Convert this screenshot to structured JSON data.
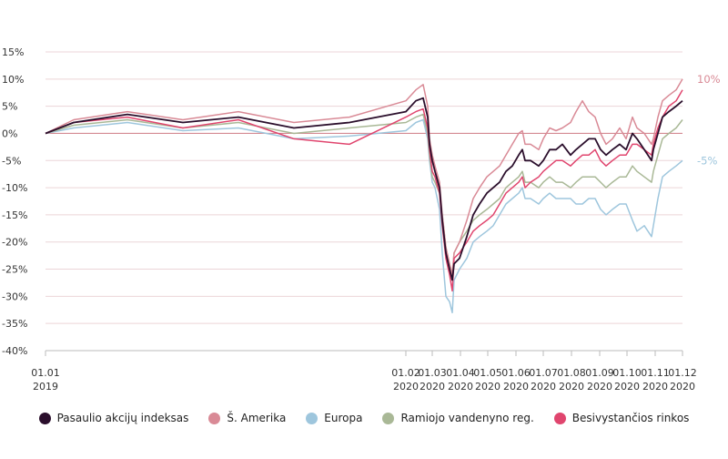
{
  "chart_data": {
    "type": "line",
    "ylim": [
      -40,
      15
    ],
    "y_ticks": [
      {
        "value": 15,
        "label": "15%"
      },
      {
        "value": 10,
        "label": "10%"
      },
      {
        "value": 5,
        "label": "5%"
      },
      {
        "value": 0,
        "label": "0%"
      },
      {
        "value": -5,
        "label": "-5%"
      },
      {
        "value": -10,
        "label": "-10%"
      },
      {
        "value": -15,
        "label": "-15%"
      },
      {
        "value": -20,
        "label": "-20%"
      },
      {
        "value": -25,
        "label": "-25%"
      },
      {
        "value": -30,
        "label": "-30%"
      },
      {
        "value": -35,
        "label": "-35%"
      },
      {
        "value": -40,
        "label": "-40%"
      }
    ],
    "x_ticks": [
      {
        "value": "2019-01-01",
        "line1": "01.01",
        "line2": "2019"
      },
      {
        "value": "2020-02-01",
        "line1": "01.02",
        "line2": "2020"
      },
      {
        "value": "2020-03-01",
        "line1": "01.03",
        "line2": "2020"
      },
      {
        "value": "2020-04-01",
        "line1": "01.04",
        "line2": "2020"
      },
      {
        "value": "2020-05-01",
        "line1": "01.05",
        "line2": "2020"
      },
      {
        "value": "2020-06-01",
        "line1": "01.06",
        "line2": "2020"
      },
      {
        "value": "2020-07-01",
        "line1": "01.07",
        "line2": "2020"
      },
      {
        "value": "2020-08-01",
        "line1": "01.08",
        "line2": "2020"
      },
      {
        "value": "2020-09-01",
        "line1": "01.09",
        "line2": "2020"
      },
      {
        "value": "2020-10-01",
        "line1": "01.10",
        "line2": "2020"
      },
      {
        "value": "2020-11-01",
        "line1": "01.11",
        "line2": "2020"
      },
      {
        "value": "2020-12-01",
        "line1": "01.12",
        "line2": "2020"
      }
    ],
    "grid": true,
    "legend_position": "bottom",
    "end_labels": [
      {
        "series": "Š. Amerika",
        "text": "10%",
        "value": 10
      },
      {
        "series": "Europa",
        "text": "-5%",
        "value": -5
      }
    ],
    "series": [
      {
        "name": "Pasaulio akcijų indeksas",
        "color": "#2b0f2c",
        "x": [
          "2019-01-01",
          "2019-02-01",
          "2019-04-01",
          "2019-06-01",
          "2019-08-01",
          "2019-10-01",
          "2019-12-01",
          "2020-02-01",
          "2020-02-12",
          "2020-02-20",
          "2020-02-25",
          "2020-02-27",
          "2020-03-01",
          "2020-03-04",
          "2020-03-09",
          "2020-03-12",
          "2020-03-16",
          "2020-03-20",
          "2020-03-23",
          "2020-03-25",
          "2020-03-31",
          "2020-04-08",
          "2020-04-15",
          "2020-04-22",
          "2020-04-30",
          "2020-05-07",
          "2020-05-14",
          "2020-05-21",
          "2020-05-28",
          "2020-06-04",
          "2020-06-08",
          "2020-06-11",
          "2020-06-17",
          "2020-06-26",
          "2020-07-01",
          "2020-07-08",
          "2020-07-15",
          "2020-07-22",
          "2020-07-31",
          "2020-08-06",
          "2020-08-13",
          "2020-08-20",
          "2020-08-27",
          "2020-09-02",
          "2020-09-08",
          "2020-09-15",
          "2020-09-23",
          "2020-09-30",
          "2020-10-07",
          "2020-10-12",
          "2020-10-20",
          "2020-10-28",
          "2020-10-30",
          "2020-11-04",
          "2020-11-09",
          "2020-11-16",
          "2020-11-24",
          "2020-12-01"
        ],
        "values": [
          0,
          2,
          3.5,
          2,
          3,
          1,
          2,
          4,
          6,
          6.5,
          3,
          -2,
          -5,
          -7,
          -10,
          -16,
          -22,
          -25,
          -27,
          -24,
          -23,
          -19,
          -15,
          -13,
          -11,
          -10,
          -9,
          -7,
          -6,
          -4,
          -3,
          -5,
          -5,
          -6,
          -5,
          -3,
          -3,
          -2,
          -4,
          -3,
          -2,
          -1,
          -1,
          -3,
          -4,
          -3,
          -2,
          -3,
          0,
          -1,
          -3,
          -5,
          -3,
          0,
          3,
          4,
          5,
          6
        ]
      },
      {
        "name": "Š. Amerika",
        "color": "#d98a96",
        "x": [
          "2019-01-01",
          "2019-02-01",
          "2019-04-01",
          "2019-06-01",
          "2019-08-01",
          "2019-10-01",
          "2019-12-01",
          "2020-02-01",
          "2020-02-12",
          "2020-02-20",
          "2020-02-25",
          "2020-02-27",
          "2020-03-01",
          "2020-03-04",
          "2020-03-09",
          "2020-03-12",
          "2020-03-16",
          "2020-03-20",
          "2020-03-23",
          "2020-03-25",
          "2020-03-31",
          "2020-04-08",
          "2020-04-15",
          "2020-04-22",
          "2020-04-30",
          "2020-05-07",
          "2020-05-14",
          "2020-05-21",
          "2020-05-28",
          "2020-06-04",
          "2020-06-08",
          "2020-06-11",
          "2020-06-17",
          "2020-06-26",
          "2020-07-01",
          "2020-07-08",
          "2020-07-15",
          "2020-07-22",
          "2020-07-31",
          "2020-08-06",
          "2020-08-13",
          "2020-08-20",
          "2020-08-27",
          "2020-09-02",
          "2020-09-08",
          "2020-09-15",
          "2020-09-23",
          "2020-09-30",
          "2020-10-07",
          "2020-10-12",
          "2020-10-20",
          "2020-10-28",
          "2020-10-30",
          "2020-11-04",
          "2020-11-09",
          "2020-11-16",
          "2020-11-24",
          "2020-12-01"
        ],
        "values": [
          0,
          2.5,
          4,
          2.5,
          4,
          2,
          3,
          6,
          8,
          9,
          5,
          -1,
          -4,
          -6,
          -9,
          -15,
          -21,
          -24,
          -26,
          -22,
          -20,
          -16,
          -12,
          -10,
          -8,
          -7,
          -6,
          -4,
          -2,
          0,
          0.5,
          -2,
          -2,
          -3,
          -1,
          1,
          0.5,
          1,
          2,
          4,
          6,
          4,
          3,
          0,
          -2,
          -1,
          1,
          -1,
          3,
          1,
          0,
          -2,
          -1,
          3,
          6,
          7,
          8,
          10
        ]
      },
      {
        "name": "Europa",
        "color": "#9ec6dd",
        "x": [
          "2019-01-01",
          "2019-02-01",
          "2019-04-01",
          "2019-06-01",
          "2019-08-01",
          "2019-10-01",
          "2019-12-01",
          "2020-02-01",
          "2020-02-12",
          "2020-02-20",
          "2020-02-25",
          "2020-02-27",
          "2020-03-01",
          "2020-03-04",
          "2020-03-09",
          "2020-03-12",
          "2020-03-16",
          "2020-03-20",
          "2020-03-23",
          "2020-03-25",
          "2020-03-31",
          "2020-04-08",
          "2020-04-15",
          "2020-04-22",
          "2020-04-30",
          "2020-05-07",
          "2020-05-14",
          "2020-05-21",
          "2020-05-28",
          "2020-06-04",
          "2020-06-08",
          "2020-06-11",
          "2020-06-17",
          "2020-06-26",
          "2020-07-01",
          "2020-07-08",
          "2020-07-15",
          "2020-07-22",
          "2020-07-31",
          "2020-08-06",
          "2020-08-13",
          "2020-08-20",
          "2020-08-27",
          "2020-09-02",
          "2020-09-08",
          "2020-09-15",
          "2020-09-23",
          "2020-09-30",
          "2020-10-07",
          "2020-10-12",
          "2020-10-20",
          "2020-10-28",
          "2020-10-30",
          "2020-11-04",
          "2020-11-09",
          "2020-11-16",
          "2020-11-24",
          "2020-12-01"
        ],
        "values": [
          0,
          1,
          2,
          0.5,
          1,
          -1,
          -0.5,
          0.5,
          2,
          2.5,
          -1,
          -5,
          -9,
          -10,
          -14,
          -22,
          -30,
          -31,
          -33,
          -27,
          -25,
          -23,
          -20,
          -19,
          -18,
          -17,
          -15,
          -13,
          -12,
          -11,
          -10,
          -12,
          -12,
          -13,
          -12,
          -11,
          -12,
          -12,
          -12,
          -13,
          -13,
          -12,
          -12,
          -14,
          -15,
          -14,
          -13,
          -13,
          -16,
          -18,
          -17,
          -19,
          -17,
          -12,
          -8,
          -7,
          -6,
          -5
        ]
      },
      {
        "name": "Ramiojo vandenyno reg.",
        "color": "#a9b896",
        "x": [
          "2019-01-01",
          "2019-02-01",
          "2019-04-01",
          "2019-06-01",
          "2019-08-01",
          "2019-10-01",
          "2019-12-01",
          "2020-02-01",
          "2020-02-12",
          "2020-02-20",
          "2020-02-25",
          "2020-02-27",
          "2020-03-01",
          "2020-03-04",
          "2020-03-09",
          "2020-03-12",
          "2020-03-16",
          "2020-03-20",
          "2020-03-23",
          "2020-03-25",
          "2020-03-31",
          "2020-04-08",
          "2020-04-15",
          "2020-04-22",
          "2020-04-30",
          "2020-05-07",
          "2020-05-14",
          "2020-05-21",
          "2020-05-28",
          "2020-06-04",
          "2020-06-08",
          "2020-06-11",
          "2020-06-17",
          "2020-06-26",
          "2020-07-01",
          "2020-07-08",
          "2020-07-15",
          "2020-07-22",
          "2020-07-31",
          "2020-08-06",
          "2020-08-13",
          "2020-08-20",
          "2020-08-27",
          "2020-09-02",
          "2020-09-08",
          "2020-09-15",
          "2020-09-23",
          "2020-09-30",
          "2020-10-07",
          "2020-10-12",
          "2020-10-20",
          "2020-10-28",
          "2020-10-30",
          "2020-11-04",
          "2020-11-09",
          "2020-11-16",
          "2020-11-24",
          "2020-12-01"
        ],
        "values": [
          0,
          1.5,
          2.5,
          1,
          2,
          0,
          1,
          2,
          3,
          3.5,
          0,
          -4,
          -8,
          -9,
          -11,
          -15,
          -21,
          -24,
          -26,
          -22,
          -20,
          -18,
          -16,
          -15,
          -14,
          -13,
          -12,
          -10,
          -9,
          -8,
          -7,
          -9,
          -9,
          -10,
          -9,
          -8,
          -9,
          -9,
          -10,
          -9,
          -8,
          -8,
          -8,
          -9,
          -10,
          -9,
          -8,
          -8,
          -6,
          -7,
          -8,
          -9,
          -7,
          -4,
          -1,
          0,
          1,
          2.5
        ]
      },
      {
        "name": "Besivystančios rinkos",
        "color": "#e0456e",
        "x": [
          "2019-01-01",
          "2019-02-01",
          "2019-04-01",
          "2019-06-01",
          "2019-08-01",
          "2019-10-01",
          "2019-12-01",
          "2020-02-01",
          "2020-02-12",
          "2020-02-20",
          "2020-02-25",
          "2020-02-27",
          "2020-03-01",
          "2020-03-04",
          "2020-03-09",
          "2020-03-12",
          "2020-03-16",
          "2020-03-20",
          "2020-03-23",
          "2020-03-25",
          "2020-03-31",
          "2020-04-08",
          "2020-04-15",
          "2020-04-22",
          "2020-04-30",
          "2020-05-07",
          "2020-05-14",
          "2020-05-21",
          "2020-05-28",
          "2020-06-04",
          "2020-06-08",
          "2020-06-11",
          "2020-06-17",
          "2020-06-26",
          "2020-07-01",
          "2020-07-08",
          "2020-07-15",
          "2020-07-22",
          "2020-07-31",
          "2020-08-06",
          "2020-08-13",
          "2020-08-20",
          "2020-08-27",
          "2020-09-02",
          "2020-09-08",
          "2020-09-15",
          "2020-09-23",
          "2020-09-30",
          "2020-10-07",
          "2020-10-12",
          "2020-10-20",
          "2020-10-28",
          "2020-10-30",
          "2020-11-04",
          "2020-11-09",
          "2020-11-16",
          "2020-11-24",
          "2020-12-01"
        ],
        "values": [
          0,
          2,
          3,
          1,
          2.5,
          -1,
          -2,
          3,
          4,
          4.5,
          1,
          -3,
          -7,
          -8,
          -11,
          -17,
          -23,
          -26,
          -29,
          -23,
          -22,
          -20,
          -18,
          -17,
          -16,
          -15,
          -13,
          -11,
          -10,
          -9,
          -8,
          -10,
          -9,
          -8,
          -7,
          -6,
          -5,
          -5,
          -6,
          -5,
          -4,
          -4,
          -3,
          -5,
          -6,
          -5,
          -4,
          -4,
          -2,
          -2,
          -3,
          -4,
          -2,
          1,
          3,
          5,
          6,
          8
        ]
      }
    ]
  }
}
